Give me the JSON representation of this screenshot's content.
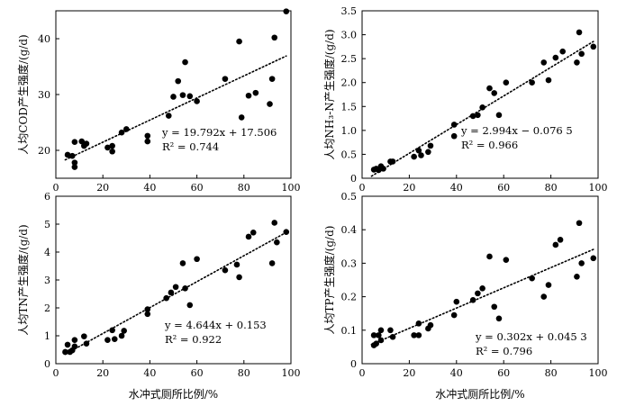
{
  "chart_data": [
    {
      "type": "scatter",
      "ylabel": "人均COD产生强度/(g/d)",
      "xlim": [
        0,
        100
      ],
      "ylim": [
        15,
        45
      ],
      "xticks": [
        "0",
        "20",
        "40",
        "60",
        "80",
        "100"
      ],
      "yticks": [
        "20",
        "30",
        "40"
      ],
      "ytick_values": [
        20,
        30,
        40
      ],
      "points": [
        [
          5,
          19.2
        ],
        [
          7,
          19.0
        ],
        [
          8,
          17.0
        ],
        [
          8,
          17.8
        ],
        [
          8,
          21.5
        ],
        [
          11,
          21.6
        ],
        [
          12,
          20.8
        ],
        [
          13,
          21.2
        ],
        [
          22,
          20.5
        ],
        [
          24,
          19.8
        ],
        [
          24,
          20.8
        ],
        [
          28,
          23.2
        ],
        [
          30,
          23.8
        ],
        [
          39,
          22.6
        ],
        [
          39,
          21.6
        ],
        [
          48,
          26.2
        ],
        [
          50,
          29.6
        ],
        [
          52,
          32.4
        ],
        [
          54,
          29.9
        ],
        [
          55,
          35.8
        ],
        [
          57,
          29.7
        ],
        [
          60,
          28.8
        ],
        [
          72,
          32.8
        ],
        [
          78,
          39.5
        ],
        [
          79,
          25.9
        ],
        [
          82,
          29.8
        ],
        [
          85,
          30.3
        ],
        [
          91,
          28.3
        ],
        [
          92,
          32.8
        ],
        [
          93,
          40.2
        ],
        [
          98,
          44.9
        ]
      ],
      "fit": {
        "slope": 19.792,
        "intercept": 17.506,
        "x_range": [
          4,
          98
        ]
      },
      "equation": "y = 19.792x + 17.506",
      "r2": "R² = 0.744"
    },
    {
      "type": "scatter",
      "ylabel": "人均NH₃-N产生强度/(g/d)",
      "xlim": [
        0,
        100
      ],
      "ylim": [
        0,
        3.5
      ],
      "xticks": [
        "0",
        "20",
        "40",
        "60",
        "80",
        "100"
      ],
      "yticks": [
        "0",
        "0.5",
        "1.0",
        "1.5",
        "2.0",
        "2.5",
        "3.0",
        "3.5"
      ],
      "ytick_values": [
        0,
        0.5,
        1.0,
        1.5,
        2.0,
        2.5,
        3.0,
        3.5
      ],
      "points": [
        [
          5,
          0.18
        ],
        [
          6,
          0.2
        ],
        [
          7,
          0.17
        ],
        [
          8,
          0.25
        ],
        [
          9,
          0.2
        ],
        [
          12,
          0.35
        ],
        [
          13,
          0.35
        ],
        [
          22,
          0.45
        ],
        [
          24,
          0.58
        ],
        [
          25,
          0.48
        ],
        [
          28,
          0.55
        ],
        [
          29,
          0.68
        ],
        [
          39,
          0.88
        ],
        [
          39,
          1.12
        ],
        [
          47,
          1.3
        ],
        [
          49,
          1.32
        ],
        [
          51,
          1.48
        ],
        [
          54,
          1.88
        ],
        [
          56,
          1.78
        ],
        [
          58,
          1.32
        ],
        [
          61,
          2.0
        ],
        [
          72,
          2.0
        ],
        [
          77,
          2.42
        ],
        [
          79,
          2.05
        ],
        [
          82,
          2.52
        ],
        [
          85,
          2.65
        ],
        [
          91,
          2.42
        ],
        [
          92,
          3.05
        ],
        [
          93,
          2.6
        ],
        [
          98,
          2.75
        ]
      ],
      "fit": {
        "slope": 2.994,
        "intercept": -0.0765,
        "x_range": [
          4,
          98
        ]
      },
      "equation": "y = 2.994x − 0.076 5",
      "r2": "R² = 0.966"
    },
    {
      "type": "scatter",
      "ylabel": "人均TN产生强度/(g/d)",
      "xlabel": "水冲式厕所比例/%",
      "xlim": [
        0,
        100
      ],
      "ylim": [
        0,
        6
      ],
      "xticks": [
        "0",
        "20",
        "40",
        "60",
        "80",
        "100"
      ],
      "yticks": [
        "0",
        "1",
        "2",
        "3",
        "4",
        "5",
        "6"
      ],
      "ytick_values": [
        0,
        1,
        2,
        3,
        4,
        5,
        6
      ],
      "points": [
        [
          4,
          0.42
        ],
        [
          5,
          0.68
        ],
        [
          6,
          0.42
        ],
        [
          7,
          0.48
        ],
        [
          8,
          0.62
        ],
        [
          8,
          0.85
        ],
        [
          12,
          0.98
        ],
        [
          13,
          0.72
        ],
        [
          22,
          0.85
        ],
        [
          24,
          1.2
        ],
        [
          25,
          0.88
        ],
        [
          28,
          1.0
        ],
        [
          29,
          1.18
        ],
        [
          39,
          1.78
        ],
        [
          39,
          1.95
        ],
        [
          47,
          2.35
        ],
        [
          49,
          2.55
        ],
        [
          51,
          2.75
        ],
        [
          54,
          3.6
        ],
        [
          55,
          2.7
        ],
        [
          57,
          2.1
        ],
        [
          60,
          3.75
        ],
        [
          72,
          3.35
        ],
        [
          77,
          3.55
        ],
        [
          78,
          3.1
        ],
        [
          82,
          4.55
        ],
        [
          84,
          4.7
        ],
        [
          92,
          3.6
        ],
        [
          93,
          5.05
        ],
        [
          94,
          4.35
        ],
        [
          98,
          4.72
        ]
      ],
      "fit": {
        "slope": 4.644,
        "intercept": 0.153,
        "x_range": [
          4,
          98
        ]
      },
      "equation": "y = 4.644x + 0.153",
      "r2": "R² = 0.922"
    },
    {
      "type": "scatter",
      "ylabel": "人均TP产生强度/(g/d)",
      "xlabel": "水冲式厕所比例/%",
      "xlim": [
        0,
        100
      ],
      "ylim": [
        0,
        0.5
      ],
      "xticks": [
        "0",
        "20",
        "40",
        "60",
        "80",
        "100"
      ],
      "yticks": [
        "0",
        "0.1",
        "0.2",
        "0.3",
        "0.4",
        "0.5"
      ],
      "ytick_values": [
        0,
        0.1,
        0.2,
        0.3,
        0.4,
        0.5
      ],
      "points": [
        [
          5,
          0.055
        ],
        [
          5,
          0.085
        ],
        [
          6,
          0.06
        ],
        [
          7,
          0.085
        ],
        [
          8,
          0.1
        ],
        [
          8,
          0.07
        ],
        [
          12,
          0.1
        ],
        [
          13,
          0.08
        ],
        [
          22,
          0.085
        ],
        [
          24,
          0.085
        ],
        [
          24,
          0.12
        ],
        [
          28,
          0.105
        ],
        [
          29,
          0.115
        ],
        [
          39,
          0.145
        ],
        [
          40,
          0.185
        ],
        [
          47,
          0.19
        ],
        [
          49,
          0.21
        ],
        [
          51,
          0.225
        ],
        [
          54,
          0.32
        ],
        [
          56,
          0.17
        ],
        [
          58,
          0.135
        ],
        [
          61,
          0.31
        ],
        [
          72,
          0.255
        ],
        [
          77,
          0.2
        ],
        [
          79,
          0.235
        ],
        [
          82,
          0.355
        ],
        [
          84,
          0.37
        ],
        [
          91,
          0.26
        ],
        [
          92,
          0.42
        ],
        [
          93,
          0.3
        ],
        [
          98,
          0.315
        ]
      ],
      "fit": {
        "slope": 0.302,
        "intercept": 0.0453,
        "x_range": [
          4,
          98
        ]
      },
      "equation": "y = 0.302x + 0.045 3",
      "r2": "R² = 0.796"
    }
  ]
}
